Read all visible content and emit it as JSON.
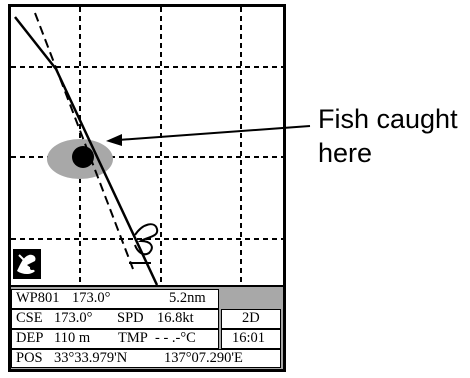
{
  "plotter": {
    "icons": {
      "mode": "ship-track-mode-icon",
      "catch_mark": "fish-mark-icon"
    }
  },
  "data_panel": {
    "waypoint": {
      "name": "WP801",
      "bearing": "173.0°",
      "distance": "5.2nm"
    },
    "course": {
      "label": "CSE",
      "value": "173.0°",
      "speed_label": "SPD",
      "speed": "16.8kt",
      "fix_mode": "2D"
    },
    "depth": {
      "label": "DEP",
      "value": "110 m",
      "temp_label": "TMP",
      "temp": "- - .-°C",
      "time": "16:01"
    },
    "position": {
      "label": "POS",
      "lat": "33°33.979'N",
      "lon": "137°07.290'E"
    }
  },
  "callout": {
    "line1": "Fish caught",
    "line2": "here"
  }
}
